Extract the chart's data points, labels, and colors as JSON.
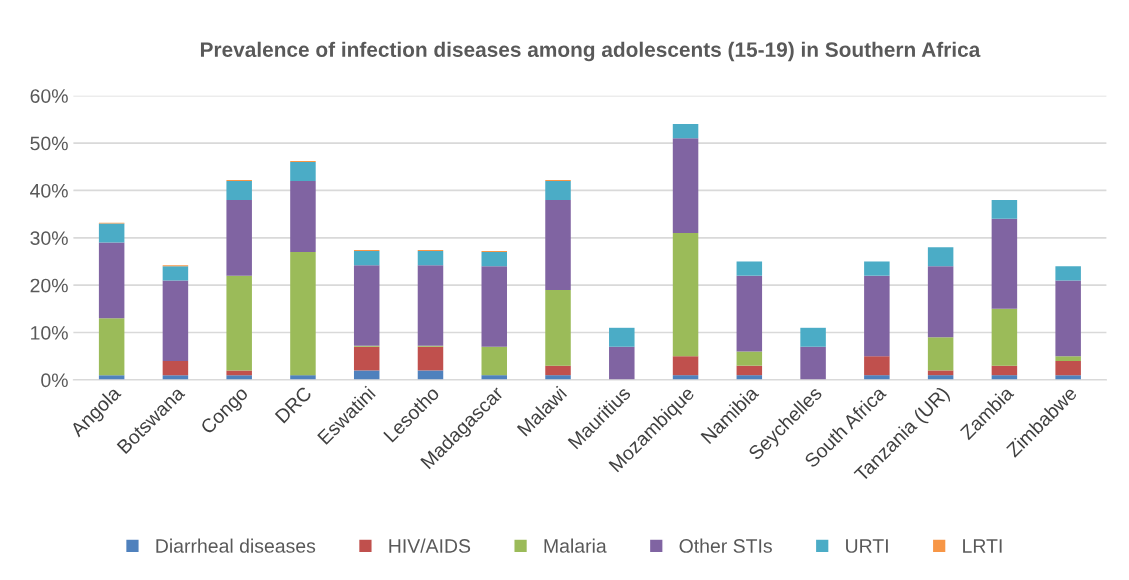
{
  "chart_data": {
    "type": "bar",
    "stacked": true,
    "title": "Prevalence of infection diseases among adolescents (15-19) in Southern Africa",
    "categories": [
      "Angola",
      "Botswana",
      "Congo",
      "DRC",
      "Eswatini",
      "Lesotho",
      "Madagascar",
      "Malawi",
      "Mauritius",
      "Mozambique",
      "Namibia",
      "Seychelles",
      "South Africa",
      "Tanzania (UR)",
      "Zambia",
      "Zimbabwe"
    ],
    "series": [
      {
        "name": "Diarrheal diseases",
        "color": "#4f81bd",
        "values": [
          1,
          1,
          1,
          1,
          2,
          2,
          1,
          1,
          0,
          1,
          1,
          0,
          1,
          1,
          1,
          1
        ]
      },
      {
        "name": "HIV/AIDS",
        "color": "#c0504d",
        "values": [
          0,
          3,
          1,
          0,
          5,
          5,
          0,
          2,
          0,
          4,
          2,
          0,
          4,
          1,
          2,
          3
        ]
      },
      {
        "name": "Malaria",
        "color": "#9bbb59",
        "values": [
          12,
          0,
          20,
          26,
          0.2,
          0.2,
          6,
          16,
          0,
          26,
          3,
          0,
          0,
          7,
          12,
          1
        ]
      },
      {
        "name": "Other STIs",
        "color": "#8064a2",
        "values": [
          16,
          17,
          16,
          15,
          17,
          17,
          17,
          19,
          7,
          20,
          16,
          7,
          17,
          15,
          19,
          16
        ]
      },
      {
        "name": "URTI",
        "color": "#4bacc6",
        "values": [
          4,
          3,
          4,
          4,
          3,
          3,
          3,
          4,
          4,
          3,
          3,
          4,
          3,
          4,
          4,
          3
        ]
      },
      {
        "name": "LRTI",
        "color": "#f79646",
        "values": [
          0.2,
          0.2,
          0.2,
          0.2,
          0.2,
          0.2,
          0.2,
          0.2,
          0,
          0,
          0,
          0,
          0,
          0,
          0,
          0
        ]
      }
    ],
    "ylim": [
      0,
      60
    ],
    "yticks": [
      {
        "value": 0,
        "label": "0%"
      },
      {
        "value": 10,
        "label": "10%"
      },
      {
        "value": 20,
        "label": "20%"
      },
      {
        "value": 30,
        "label": "30%"
      },
      {
        "value": 40,
        "label": "40%"
      },
      {
        "value": 50,
        "label": "50%"
      },
      {
        "value": 60,
        "label": "60%"
      }
    ],
    "grid": "y",
    "legend": "bottom"
  }
}
